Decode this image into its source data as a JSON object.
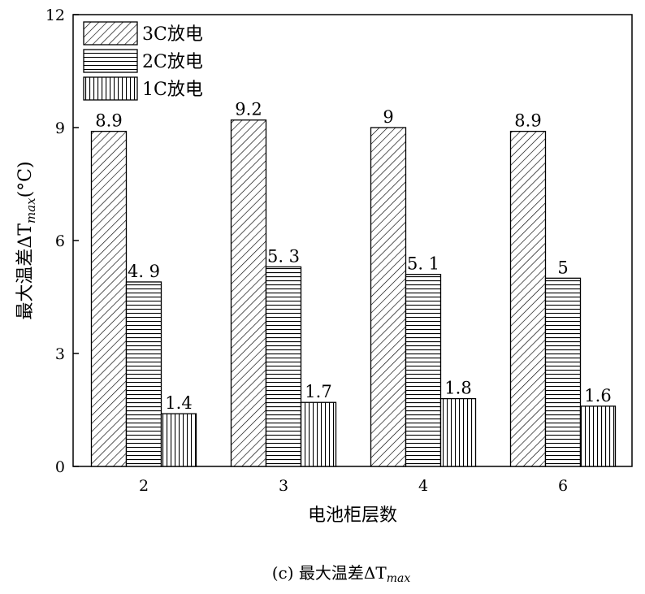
{
  "chart_data": {
    "type": "bar",
    "categories": [
      "2",
      "3",
      "4",
      "6"
    ],
    "series": [
      {
        "name": "3C放电",
        "values": [
          8.9,
          9.2,
          9,
          8.9
        ],
        "labels": [
          "8.9",
          "9.2",
          "9",
          "8.9"
        ],
        "pattern": "diagonal"
      },
      {
        "name": "2C放电",
        "values": [
          4.9,
          5.3,
          5.1,
          5
        ],
        "labels": [
          "4. 9",
          "5. 3",
          "5. 1",
          "5"
        ],
        "pattern": "horizontal"
      },
      {
        "name": "1C放电",
        "values": [
          1.4,
          1.7,
          1.8,
          1.6
        ],
        "labels": [
          "1.4",
          "1.7",
          "1.8",
          "1.6"
        ],
        "pattern": "vertical"
      }
    ],
    "xlabel": "电池柜层数",
    "ylabel": {
      "main": "最大温差ΔT",
      "subscript": "max",
      "unit": "(°C)"
    },
    "ylim": [
      0,
      12
    ],
    "yticks": [
      0,
      3,
      6,
      9,
      12
    ],
    "grid": false,
    "legend_position": "top-left"
  },
  "caption": {
    "prefix": "(c)  最大温差ΔT",
    "subscript": "max"
  }
}
